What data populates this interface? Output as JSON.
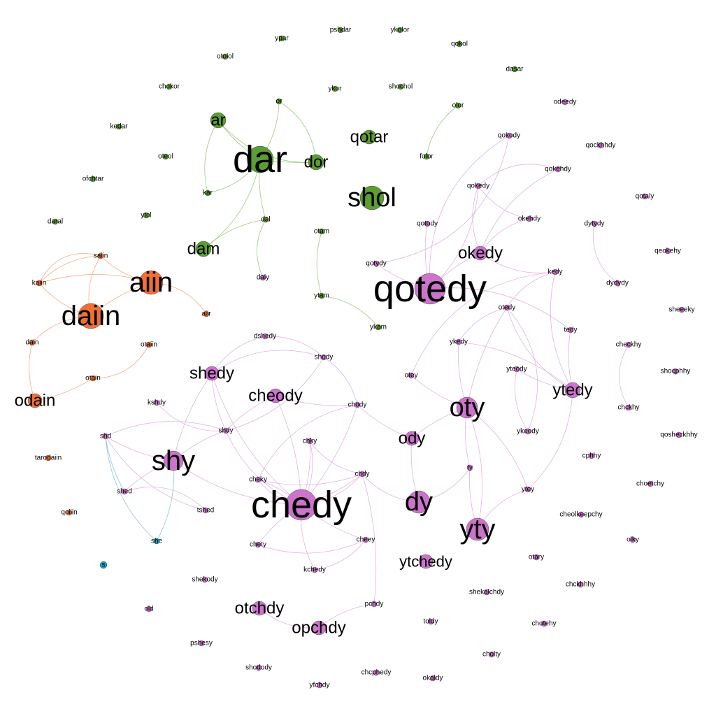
{
  "graph": {
    "colors": {
      "green": "#5b9e32",
      "orange": "#f07038",
      "purple": "#cc74cc",
      "cyan": "#1b9fc0",
      "green_edge": "#8ac26a",
      "orange_edge": "#f49a6e",
      "purple_edge": "#dca6dc",
      "cyan_edge": "#7db8d8"
    },
    "nodes": [
      {
        "id": "dar",
        "label": "dar",
        "group": "green",
        "size": 66
      },
      {
        "id": "ar",
        "label": "ar",
        "group": "green",
        "size": 24
      },
      {
        "id": "or",
        "label": "or",
        "group": "green",
        "size": 10
      },
      {
        "id": "dor",
        "label": "dor",
        "group": "green",
        "size": 26
      },
      {
        "id": "kar",
        "label": "kar",
        "group": "green",
        "size": 10
      },
      {
        "id": "dal",
        "label": "dal",
        "group": "green",
        "size": 11
      },
      {
        "id": "dam",
        "label": "dam",
        "group": "green",
        "size": 24
      },
      {
        "id": "daly",
        "label": "daly",
        "group": "purple",
        "size": 10
      },
      {
        "id": "qotar",
        "label": "qotar",
        "group": "green",
        "size": 24
      },
      {
        "id": "shol",
        "label": "shol",
        "group": "green",
        "size": 38
      },
      {
        "id": "otam",
        "label": "otam",
        "group": "green",
        "size": 10
      },
      {
        "id": "ytam",
        "label": "ytam",
        "group": "green",
        "size": 10
      },
      {
        "id": "ykam",
        "label": "ykam",
        "group": "green",
        "size": 10
      },
      {
        "id": "olor",
        "label": "olor",
        "group": "green",
        "size": 10
      },
      {
        "id": "folor",
        "label": "folor",
        "group": "green",
        "size": 10
      },
      {
        "id": "ypar",
        "label": "ypar",
        "group": "green",
        "size": 10
      },
      {
        "id": "pshdar",
        "label": "pshdar",
        "group": "green",
        "size": 10
      },
      {
        "id": "ykolor",
        "label": "ykolor",
        "group": "green",
        "size": 10
      },
      {
        "id": "qokol",
        "label": "qokol",
        "group": "green",
        "size": 10
      },
      {
        "id": "otolol",
        "label": "otolol",
        "group": "green",
        "size": 10
      },
      {
        "id": "dasar",
        "label": "dasar",
        "group": "green",
        "size": 10
      },
      {
        "id": "chokor",
        "label": "chokor",
        "group": "green",
        "size": 10
      },
      {
        "id": "ykor",
        "label": "ykor",
        "group": "green",
        "size": 10
      },
      {
        "id": "shochol",
        "label": "shochol",
        "group": "green",
        "size": 10
      },
      {
        "id": "kedar",
        "label": "kedar",
        "group": "green",
        "size": 10
      },
      {
        "id": "oteol",
        "label": "oteol",
        "group": "green",
        "size": 10
      },
      {
        "id": "ofchtar",
        "label": "ofchtar",
        "group": "green",
        "size": 10
      },
      {
        "id": "daral",
        "label": "daral",
        "group": "green",
        "size": 10
      },
      {
        "id": "ytol",
        "label": "ytol",
        "group": "green",
        "size": 10
      },
      {
        "id": "saiin",
        "label": "saiin",
        "group": "orange",
        "size": 10
      },
      {
        "id": "kaiin",
        "label": "kaiin",
        "group": "orange",
        "size": 10
      },
      {
        "id": "aiin",
        "label": "aiin",
        "group": "orange",
        "size": 40
      },
      {
        "id": "daiin",
        "label": "daiin",
        "group": "orange",
        "size": 44
      },
      {
        "id": "aiir",
        "label": "aiir",
        "group": "orange",
        "size": 10
      },
      {
        "id": "dain",
        "label": "dain",
        "group": "orange",
        "size": 10
      },
      {
        "id": "otaiin",
        "label": "otaiin",
        "group": "orange",
        "size": 10
      },
      {
        "id": "otain",
        "label": "otain",
        "group": "orange",
        "size": 10
      },
      {
        "id": "odain",
        "label": "odain",
        "group": "orange",
        "size": 24
      },
      {
        "id": "tarodaiin",
        "label": "tarodaiin",
        "group": "orange",
        "size": 10
      },
      {
        "id": "qoiiin",
        "label": "qoiiin",
        "group": "orange",
        "size": 10
      },
      {
        "id": "s",
        "label": "s",
        "group": "cyan",
        "size": 10
      },
      {
        "id": "she",
        "label": "she",
        "group": "cyan",
        "size": 10
      },
      {
        "id": "qotedy",
        "label": "qotedy",
        "group": "purple",
        "size": 52
      },
      {
        "id": "okedy",
        "label": "okedy",
        "group": "purple",
        "size": 26
      },
      {
        "id": "qokody",
        "label": "qokody",
        "group": "purple",
        "size": 10
      },
      {
        "id": "qokehdy",
        "label": "qokehdy",
        "group": "purple",
        "size": 10
      },
      {
        "id": "qokedy",
        "label": "qokedy",
        "group": "purple",
        "size": 10
      },
      {
        "id": "okehdy",
        "label": "okehdy",
        "group": "purple",
        "size": 10
      },
      {
        "id": "qotody",
        "label": "qotody",
        "group": "purple",
        "size": 10
      },
      {
        "id": "qotydy",
        "label": "qotydy",
        "group": "purple",
        "size": 10
      },
      {
        "id": "odeedy",
        "label": "odeedy",
        "group": "purple",
        "size": 10
      },
      {
        "id": "qockhhdy",
        "label": "qockhhdy",
        "group": "purple",
        "size": 10
      },
      {
        "id": "qotaly",
        "label": "qotaly",
        "group": "purple",
        "size": 10
      },
      {
        "id": "dytydy",
        "label": "dytydy",
        "group": "purple",
        "size": 10
      },
      {
        "id": "dydydy",
        "label": "dydydy",
        "group": "purple",
        "size": 10
      },
      {
        "id": "qeokehy",
        "label": "qeokehy",
        "group": "purple",
        "size": 10
      },
      {
        "id": "sheeeky",
        "label": "sheeeky",
        "group": "purple",
        "size": 10
      },
      {
        "id": "kedy",
        "label": "kedy",
        "group": "purple",
        "size": 10
      },
      {
        "id": "otedy",
        "label": "otedy",
        "group": "purple",
        "size": 10
      },
      {
        "id": "tedy",
        "label": "tedy",
        "group": "purple",
        "size": 10
      },
      {
        "id": "ykedy",
        "label": "ykedy",
        "group": "purple",
        "size": 10
      },
      {
        "id": "ytedy",
        "label": "ytedy",
        "group": "purple",
        "size": 24
      },
      {
        "id": "yteody",
        "label": "yteody",
        "group": "purple",
        "size": 10
      },
      {
        "id": "ykeody",
        "label": "ykeody",
        "group": "purple",
        "size": 10
      },
      {
        "id": "checkhy",
        "label": "checkhy",
        "group": "purple",
        "size": 10
      },
      {
        "id": "chckhy",
        "label": "chckhy",
        "group": "purple",
        "size": 10
      },
      {
        "id": "shocphhy",
        "label": "shocphhy",
        "group": "purple",
        "size": 10
      },
      {
        "id": "qosheckhhy",
        "label": "qosheckhhy",
        "group": "purple",
        "size": 10
      },
      {
        "id": "cphhy",
        "label": "cphhy",
        "group": "purple",
        "size": 10
      },
      {
        "id": "choetchy",
        "label": "choetchy",
        "group": "purple",
        "size": 10
      },
      {
        "id": "cheolkeepchy",
        "label": "cheolkeepchy",
        "group": "purple",
        "size": 10
      },
      {
        "id": "olky",
        "label": "olky",
        "group": "purple",
        "size": 10
      },
      {
        "id": "otary",
        "label": "otary",
        "group": "purple",
        "size": 10
      },
      {
        "id": "chckhhhy",
        "label": "chckhhhy",
        "group": "purple",
        "size": 10
      },
      {
        "id": "shekalchdy",
        "label": "shekalchdy",
        "group": "purple",
        "size": 10
      },
      {
        "id": "chotehy",
        "label": "chotehy",
        "group": "purple",
        "size": 10
      },
      {
        "id": "cholty",
        "label": "cholty",
        "group": "purple",
        "size": 10
      },
      {
        "id": "okaldy",
        "label": "okaldy",
        "group": "purple",
        "size": 10
      },
      {
        "id": "toldy",
        "label": "toldy",
        "group": "purple",
        "size": 10
      },
      {
        "id": "chcphedy",
        "label": "chcphedy",
        "group": "purple",
        "size": 10
      },
      {
        "id": "yfchdy",
        "label": "yfchdy",
        "group": "purple",
        "size": 10
      },
      {
        "id": "shodody",
        "label": "shodody",
        "group": "purple",
        "size": 10
      },
      {
        "id": "pshesy",
        "label": "pshesy",
        "group": "purple",
        "size": 10
      },
      {
        "id": "old",
        "label": "old",
        "group": "purple",
        "size": 10
      },
      {
        "id": "shekody",
        "label": "shekody",
        "group": "purple",
        "size": 10
      },
      {
        "id": "otchdy",
        "label": "otchdy",
        "group": "purple",
        "size": 24
      },
      {
        "id": "opchdy",
        "label": "opchdy",
        "group": "purple",
        "size": 22
      },
      {
        "id": "pchdy",
        "label": "pchdy",
        "group": "purple",
        "size": 10
      },
      {
        "id": "kchedy",
        "label": "kchedy",
        "group": "purple",
        "size": 10
      },
      {
        "id": "chedy",
        "label": "chedy",
        "group": "purple",
        "size": 52
      },
      {
        "id": "cheey",
        "label": "cheey",
        "group": "purple",
        "size": 10
      },
      {
        "id": "chety",
        "label": "chety",
        "group": "purple",
        "size": 10
      },
      {
        "id": "cheky",
        "label": "cheky",
        "group": "purple",
        "size": 10
      },
      {
        "id": "chky",
        "label": "chky",
        "group": "purple",
        "size": 10
      },
      {
        "id": "chdy",
        "label": "chdy",
        "group": "purple",
        "size": 10
      },
      {
        "id": "chody",
        "label": "chody",
        "group": "purple",
        "size": 10
      },
      {
        "id": "cheody",
        "label": "cheody",
        "group": "purple",
        "size": 24
      },
      {
        "id": "shody",
        "label": "shody",
        "group": "purple",
        "size": 10
      },
      {
        "id": "dshedy",
        "label": "dshedy",
        "group": "purple",
        "size": 10
      },
      {
        "id": "shedy",
        "label": "shedy",
        "group": "purple",
        "size": 24
      },
      {
        "id": "kshdy",
        "label": "kshdy",
        "group": "purple",
        "size": 10
      },
      {
        "id": "shdy",
        "label": "shdy",
        "group": "purple",
        "size": 10
      },
      {
        "id": "shd",
        "label": "shd",
        "group": "purple",
        "size": 10
      },
      {
        "id": "shy",
        "label": "shy",
        "group": "purple",
        "size": 38
      },
      {
        "id": "shed",
        "label": "shed",
        "group": "purple",
        "size": 10
      },
      {
        "id": "tshed",
        "label": "tshed",
        "group": "purple",
        "size": 10
      },
      {
        "id": "otey",
        "label": "otey",
        "group": "purple",
        "size": 10
      },
      {
        "id": "oty",
        "label": "oty",
        "group": "purple",
        "size": 36
      },
      {
        "id": "ody",
        "label": "ody",
        "group": "purple",
        "size": 26
      },
      {
        "id": "dy",
        "label": "dy",
        "group": "purple",
        "size": 36
      },
      {
        "id": "ty",
        "label": "ty",
        "group": "purple",
        "size": 10
      },
      {
        "id": "ytey",
        "label": "ytey",
        "group": "purple",
        "size": 10
      },
      {
        "id": "yty",
        "label": "yty",
        "group": "purple",
        "size": 36
      },
      {
        "id": "ytchedy",
        "label": "ytchedy",
        "group": "purple",
        "size": 22
      }
    ]
  }
}
